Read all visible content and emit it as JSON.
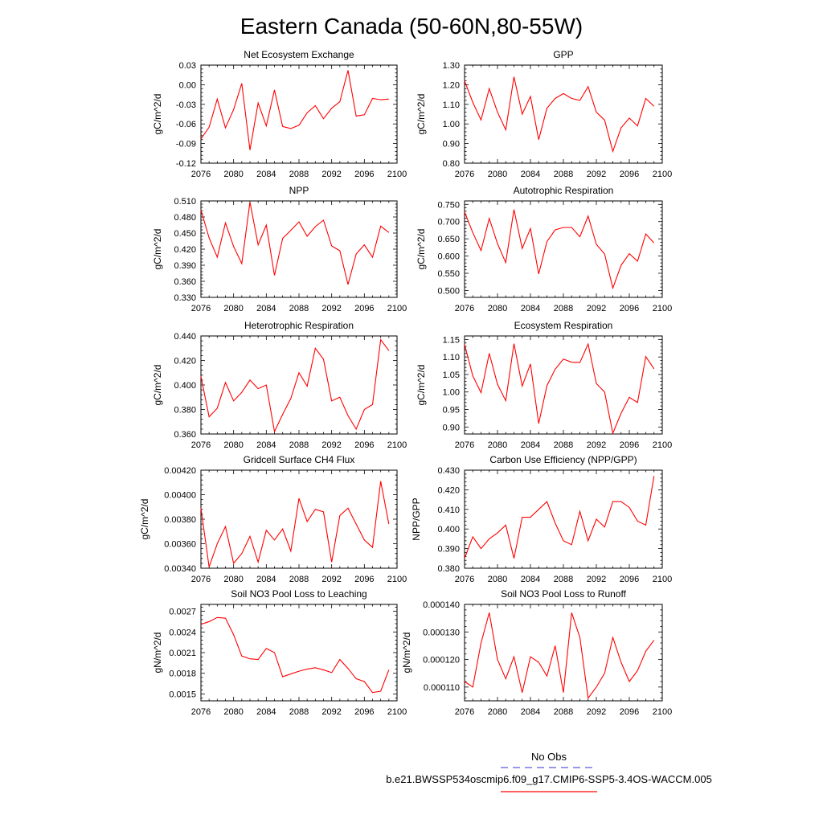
{
  "figure": {
    "title": "Eastern Canada (50-60N,80-55W)",
    "legend": [
      {
        "label": "No Obs",
        "color": "#5a5ad6",
        "style": "dashed"
      },
      {
        "label": "b.e21.BWSSP534oscmip6.f09_g17.CMIP6-SSP5-3.4OS-WACCM.005",
        "color": "#ff0000",
        "style": "solid"
      }
    ]
  },
  "chart_data": [
    {
      "type": "line",
      "title": "Net Ecosystem Exchange",
      "ylabel": "gC/m^2/d",
      "xlabel": "",
      "xlim": [
        2076,
        2100
      ],
      "ylim": [
        -0.12,
        0.03
      ],
      "xticks": [
        2076,
        2080,
        2084,
        2088,
        2092,
        2096,
        2100
      ],
      "yticks": [
        -0.12,
        -0.09,
        -0.06,
        -0.03,
        0.0,
        0.03
      ],
      "ytick_labels": [
        "-0.12",
        "-0.09",
        "-0.06",
        "-0.03",
        "0.00",
        "0.03"
      ],
      "color": "#ff0000",
      "x": [
        2076,
        2077,
        2078,
        2079,
        2080,
        2081,
        2082,
        2083,
        2084,
        2085,
        2086,
        2087,
        2088,
        2089,
        2090,
        2091,
        2092,
        2093,
        2094,
        2095,
        2096,
        2097,
        2098,
        2099
      ],
      "values": [
        -0.083,
        -0.065,
        -0.022,
        -0.066,
        -0.038,
        0.002,
        -0.1,
        -0.028,
        -0.063,
        -0.008,
        -0.064,
        -0.067,
        -0.062,
        -0.043,
        -0.032,
        -0.052,
        -0.036,
        -0.026,
        0.022,
        -0.048,
        -0.046,
        -0.021,
        -0.023,
        -0.022
      ]
    },
    {
      "type": "line",
      "title": "GPP",
      "ylabel": "gC/m^2/d",
      "xlabel": "",
      "xlim": [
        2076,
        2100
      ],
      "ylim": [
        0.8,
        1.3
      ],
      "xticks": [
        2076,
        2080,
        2084,
        2088,
        2092,
        2096,
        2100
      ],
      "yticks": [
        0.8,
        0.9,
        1.0,
        1.1,
        1.2,
        1.3
      ],
      "ytick_labels": [
        "0.80",
        "0.90",
        "1.00",
        "1.10",
        "1.20",
        "1.30"
      ],
      "color": "#ff0000",
      "x": [
        2076,
        2077,
        2078,
        2079,
        2080,
        2081,
        2082,
        2083,
        2084,
        2085,
        2086,
        2087,
        2088,
        2089,
        2090,
        2091,
        2092,
        2093,
        2094,
        2095,
        2096,
        2097,
        2098,
        2099
      ],
      "values": [
        1.22,
        1.11,
        1.02,
        1.18,
        1.06,
        0.97,
        1.24,
        1.05,
        1.14,
        0.92,
        1.08,
        1.13,
        1.155,
        1.13,
        1.12,
        1.19,
        1.06,
        1.02,
        0.86,
        0.98,
        1.03,
        0.99,
        1.13,
        1.09
      ]
    },
    {
      "type": "line",
      "title": "NPP",
      "ylabel": "gC/m^2/d",
      "xlabel": "",
      "xlim": [
        2076,
        2100
      ],
      "ylim": [
        0.33,
        0.51
      ],
      "xticks": [
        2076,
        2080,
        2084,
        2088,
        2092,
        2096,
        2100
      ],
      "yticks": [
        0.33,
        0.36,
        0.39,
        0.42,
        0.45,
        0.48,
        0.51
      ],
      "ytick_labels": [
        "0.330",
        "0.360",
        "0.390",
        "0.420",
        "0.450",
        "0.480",
        "0.510"
      ],
      "color": "#ff0000",
      "x": [
        2076,
        2077,
        2078,
        2079,
        2080,
        2081,
        2082,
        2083,
        2084,
        2085,
        2086,
        2087,
        2088,
        2089,
        2090,
        2091,
        2092,
        2093,
        2094,
        2095,
        2096,
        2097,
        2098,
        2099
      ],
      "values": [
        0.493,
        0.441,
        0.405,
        0.469,
        0.425,
        0.393,
        0.508,
        0.428,
        0.465,
        0.371,
        0.44,
        0.455,
        0.471,
        0.444,
        0.462,
        0.474,
        0.426,
        0.417,
        0.354,
        0.411,
        0.428,
        0.405,
        0.463,
        0.451
      ]
    },
    {
      "type": "line",
      "title": "Autotrophic Respiration",
      "ylabel": "gC/m^2/d",
      "xlabel": "",
      "xlim": [
        2076,
        2100
      ],
      "ylim": [
        0.48,
        0.76
      ],
      "xticks": [
        2076,
        2080,
        2084,
        2088,
        2092,
        2096,
        2100
      ],
      "yticks": [
        0.5,
        0.55,
        0.6,
        0.65,
        0.7,
        0.75
      ],
      "ytick_labels": [
        "0.500",
        "0.550",
        "0.600",
        "0.650",
        "0.700",
        "0.750"
      ],
      "color": "#ff0000",
      "x": [
        2076,
        2077,
        2078,
        2079,
        2080,
        2081,
        2082,
        2083,
        2084,
        2085,
        2086,
        2087,
        2088,
        2089,
        2090,
        2091,
        2092,
        2093,
        2094,
        2095,
        2096,
        2097,
        2098,
        2099
      ],
      "values": [
        0.728,
        0.668,
        0.616,
        0.709,
        0.636,
        0.581,
        0.735,
        0.622,
        0.68,
        0.548,
        0.642,
        0.676,
        0.683,
        0.683,
        0.656,
        0.716,
        0.634,
        0.606,
        0.507,
        0.573,
        0.607,
        0.585,
        0.664,
        0.638
      ]
    },
    {
      "type": "line",
      "title": "Heterotrophic Respiration",
      "ylabel": "gC/m^2/d",
      "xlabel": "",
      "xlim": [
        2076,
        2100
      ],
      "ylim": [
        0.36,
        0.44
      ],
      "xticks": [
        2076,
        2080,
        2084,
        2088,
        2092,
        2096,
        2100
      ],
      "yticks": [
        0.36,
        0.38,
        0.4,
        0.42,
        0.44
      ],
      "ytick_labels": [
        "0.360",
        "0.380",
        "0.400",
        "0.420",
        "0.440"
      ],
      "color": "#ff0000",
      "x": [
        2076,
        2077,
        2078,
        2079,
        2080,
        2081,
        2082,
        2083,
        2084,
        2085,
        2086,
        2087,
        2088,
        2089,
        2090,
        2091,
        2092,
        2093,
        2094,
        2095,
        2096,
        2097,
        2098,
        2099
      ],
      "values": [
        0.407,
        0.374,
        0.381,
        0.402,
        0.387,
        0.394,
        0.404,
        0.397,
        0.4,
        0.362,
        0.376,
        0.389,
        0.41,
        0.399,
        0.43,
        0.421,
        0.387,
        0.39,
        0.375,
        0.364,
        0.38,
        0.384,
        0.437,
        0.428
      ]
    },
    {
      "type": "line",
      "title": "Ecosystem Respiration",
      "ylabel": "gC/m^2/d",
      "xlabel": "",
      "xlim": [
        2076,
        2100
      ],
      "ylim": [
        0.88,
        1.16
      ],
      "xticks": [
        2076,
        2080,
        2084,
        2088,
        2092,
        2096,
        2100
      ],
      "yticks": [
        0.9,
        0.95,
        1.0,
        1.05,
        1.1,
        1.15
      ],
      "ytick_labels": [
        "0.90",
        "0.95",
        "1.00",
        "1.05",
        "1.10",
        "1.15"
      ],
      "color": "#ff0000",
      "x": [
        2076,
        2077,
        2078,
        2079,
        2080,
        2081,
        2082,
        2083,
        2084,
        2085,
        2086,
        2087,
        2088,
        2089,
        2090,
        2091,
        2092,
        2093,
        2094,
        2095,
        2096,
        2097,
        2098,
        2099
      ],
      "values": [
        1.136,
        1.046,
        0.998,
        1.11,
        1.022,
        0.975,
        1.138,
        1.017,
        1.08,
        0.91,
        1.018,
        1.065,
        1.094,
        1.085,
        1.084,
        1.137,
        1.024,
        1.0,
        0.882,
        0.939,
        0.985,
        0.97,
        1.101,
        1.066
      ]
    },
    {
      "type": "line",
      "title": "Gridcell Surface CH4 Flux",
      "ylabel": "gC/m^2/d",
      "xlabel": "",
      "xlim": [
        2076,
        2100
      ],
      "ylim": [
        0.0034,
        0.0042
      ],
      "xticks": [
        2076,
        2080,
        2084,
        2088,
        2092,
        2096,
        2100
      ],
      "yticks": [
        0.0034,
        0.0036,
        0.0038,
        0.004,
        0.0042
      ],
      "ytick_labels": [
        "0.00340",
        "0.00360",
        "0.00380",
        "0.00400",
        "0.00420"
      ],
      "color": "#ff0000",
      "x": [
        2076,
        2077,
        2078,
        2079,
        2080,
        2081,
        2082,
        2083,
        2084,
        2085,
        2086,
        2087,
        2088,
        2089,
        2090,
        2091,
        2092,
        2093,
        2094,
        2095,
        2096,
        2097,
        2098,
        2099
      ],
      "values": [
        0.00389,
        0.00341,
        0.0036,
        0.00374,
        0.00344,
        0.00352,
        0.00366,
        0.00345,
        0.00371,
        0.00363,
        0.00372,
        0.00354,
        0.00397,
        0.00378,
        0.00388,
        0.00386,
        0.00345,
        0.00383,
        0.00389,
        0.00376,
        0.00363,
        0.00357,
        0.00411,
        0.00376
      ]
    },
    {
      "type": "line",
      "title": "Carbon Use Efficiency (NPP/GPP)",
      "ylabel": "NPP/GPP",
      "xlabel": "",
      "xlim": [
        2076,
        2100
      ],
      "ylim": [
        0.38,
        0.43
      ],
      "xticks": [
        2076,
        2080,
        2084,
        2088,
        2092,
        2096,
        2100
      ],
      "yticks": [
        0.38,
        0.39,
        0.4,
        0.41,
        0.42,
        0.43
      ],
      "ytick_labels": [
        "0.380",
        "0.390",
        "0.400",
        "0.410",
        "0.420",
        "0.430"
      ],
      "color": "#ff0000",
      "x": [
        2076,
        2077,
        2078,
        2079,
        2080,
        2081,
        2082,
        2083,
        2084,
        2085,
        2086,
        2087,
        2088,
        2089,
        2090,
        2091,
        2092,
        2093,
        2094,
        2095,
        2096,
        2097,
        2098,
        2099
      ],
      "values": [
        0.385,
        0.396,
        0.39,
        0.395,
        0.398,
        0.402,
        0.385,
        0.406,
        0.406,
        0.41,
        0.414,
        0.403,
        0.394,
        0.392,
        0.409,
        0.394,
        0.405,
        0.401,
        0.414,
        0.414,
        0.411,
        0.404,
        0.402,
        0.427
      ]
    },
    {
      "type": "line",
      "title": "Soil NO3 Pool Loss to Leaching",
      "ylabel": "gN/m^2/d",
      "xlabel": "",
      "xlim": [
        2076,
        2100
      ],
      "ylim": [
        0.0014,
        0.0028
      ],
      "xticks": [
        2076,
        2080,
        2084,
        2088,
        2092,
        2096,
        2100
      ],
      "yticks": [
        0.0015,
        0.0018,
        0.0021,
        0.0024,
        0.0027
      ],
      "ytick_labels": [
        "0.0015",
        "0.0018",
        "0.0021",
        "0.0024",
        "0.0027"
      ],
      "color": "#ff0000",
      "x": [
        2076,
        2077,
        2078,
        2079,
        2080,
        2081,
        2082,
        2083,
        2084,
        2085,
        2086,
        2087,
        2088,
        2089,
        2090,
        2091,
        2092,
        2093,
        2094,
        2095,
        2096,
        2097,
        2098,
        2099
      ],
      "values": [
        0.00251,
        0.00255,
        0.00261,
        0.0026,
        0.00236,
        0.00205,
        0.00201,
        0.002,
        0.00216,
        0.0021,
        0.00175,
        0.00179,
        0.00183,
        0.00186,
        0.00188,
        0.00185,
        0.00181,
        0.002,
        0.00187,
        0.00172,
        0.00168,
        0.00152,
        0.00154,
        0.00185
      ]
    },
    {
      "type": "line",
      "title": "Soil NO3 Pool Loss to Runoff",
      "ylabel": "gN/m^2/d",
      "xlabel": "",
      "xlim": [
        2076,
        2100
      ],
      "ylim": [
        0.000105,
        0.00014
      ],
      "xticks": [
        2076,
        2080,
        2084,
        2088,
        2092,
        2096,
        2100
      ],
      "yticks": [
        0.00011,
        0.00012,
        0.00013,
        0.00014
      ],
      "ytick_labels": [
        "0.000110",
        "0.000120",
        "0.000130",
        "0.000140"
      ],
      "color": "#ff0000",
      "x": [
        2076,
        2077,
        2078,
        2079,
        2080,
        2081,
        2082,
        2083,
        2084,
        2085,
        2086,
        2087,
        2088,
        2089,
        2090,
        2091,
        2092,
        2093,
        2094,
        2095,
        2096,
        2097,
        2098,
        2099
      ],
      "values": [
        0.000112,
        0.00011,
        0.000126,
        0.000137,
        0.00012,
        0.000113,
        0.000121,
        0.000108,
        0.000121,
        0.000119,
        0.000114,
        0.000125,
        0.000108,
        0.000137,
        0.000128,
        0.000106,
        0.00011,
        0.000115,
        0.000128,
        0.000119,
        0.000112,
        0.000116,
        0.000123,
        0.000127
      ]
    }
  ]
}
